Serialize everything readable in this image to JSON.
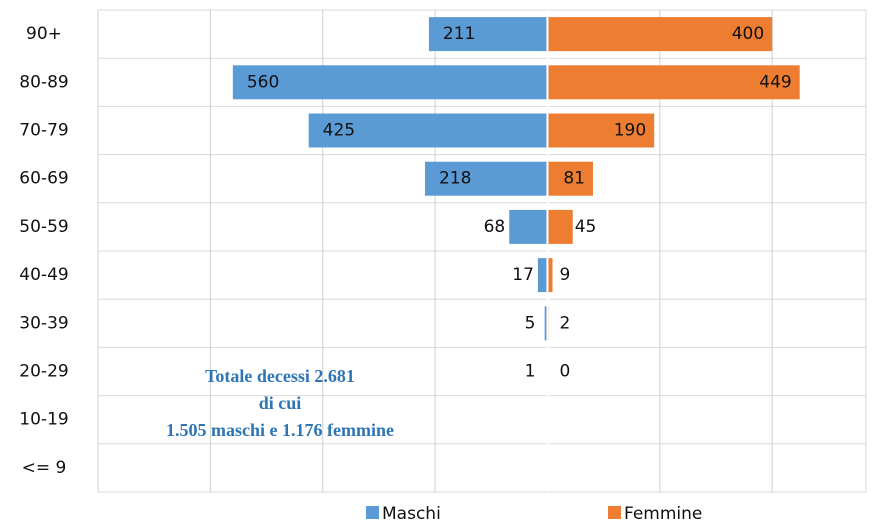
{
  "chart_data": {
    "type": "pyramid",
    "categories": [
      "90+",
      "80-89",
      "70-79",
      "60-69",
      "50-59",
      "40-49",
      "30-39",
      "20-29",
      "10-19",
      "<= 9"
    ],
    "series": [
      {
        "name": "Maschi",
        "color": "#5b9bd5",
        "side": "left",
        "values": [
          211,
          560,
          425,
          218,
          68,
          17,
          5,
          1,
          null,
          null
        ]
      },
      {
        "name": "Femmine",
        "color": "#ed7d31",
        "side": "right",
        "values": [
          400,
          449,
          190,
          81,
          45,
          9,
          2,
          0,
          null,
          null
        ]
      }
    ],
    "xlim": [
      -800,
      567
    ],
    "xticks": [
      -800,
      -600,
      -400,
      -200,
      0,
      200,
      400
    ],
    "grid": true,
    "annotation": [
      "Totale decessi 2.681",
      "di cui",
      "1.505 maschi e 1.176 femmine"
    ],
    "legend": "bottom"
  }
}
